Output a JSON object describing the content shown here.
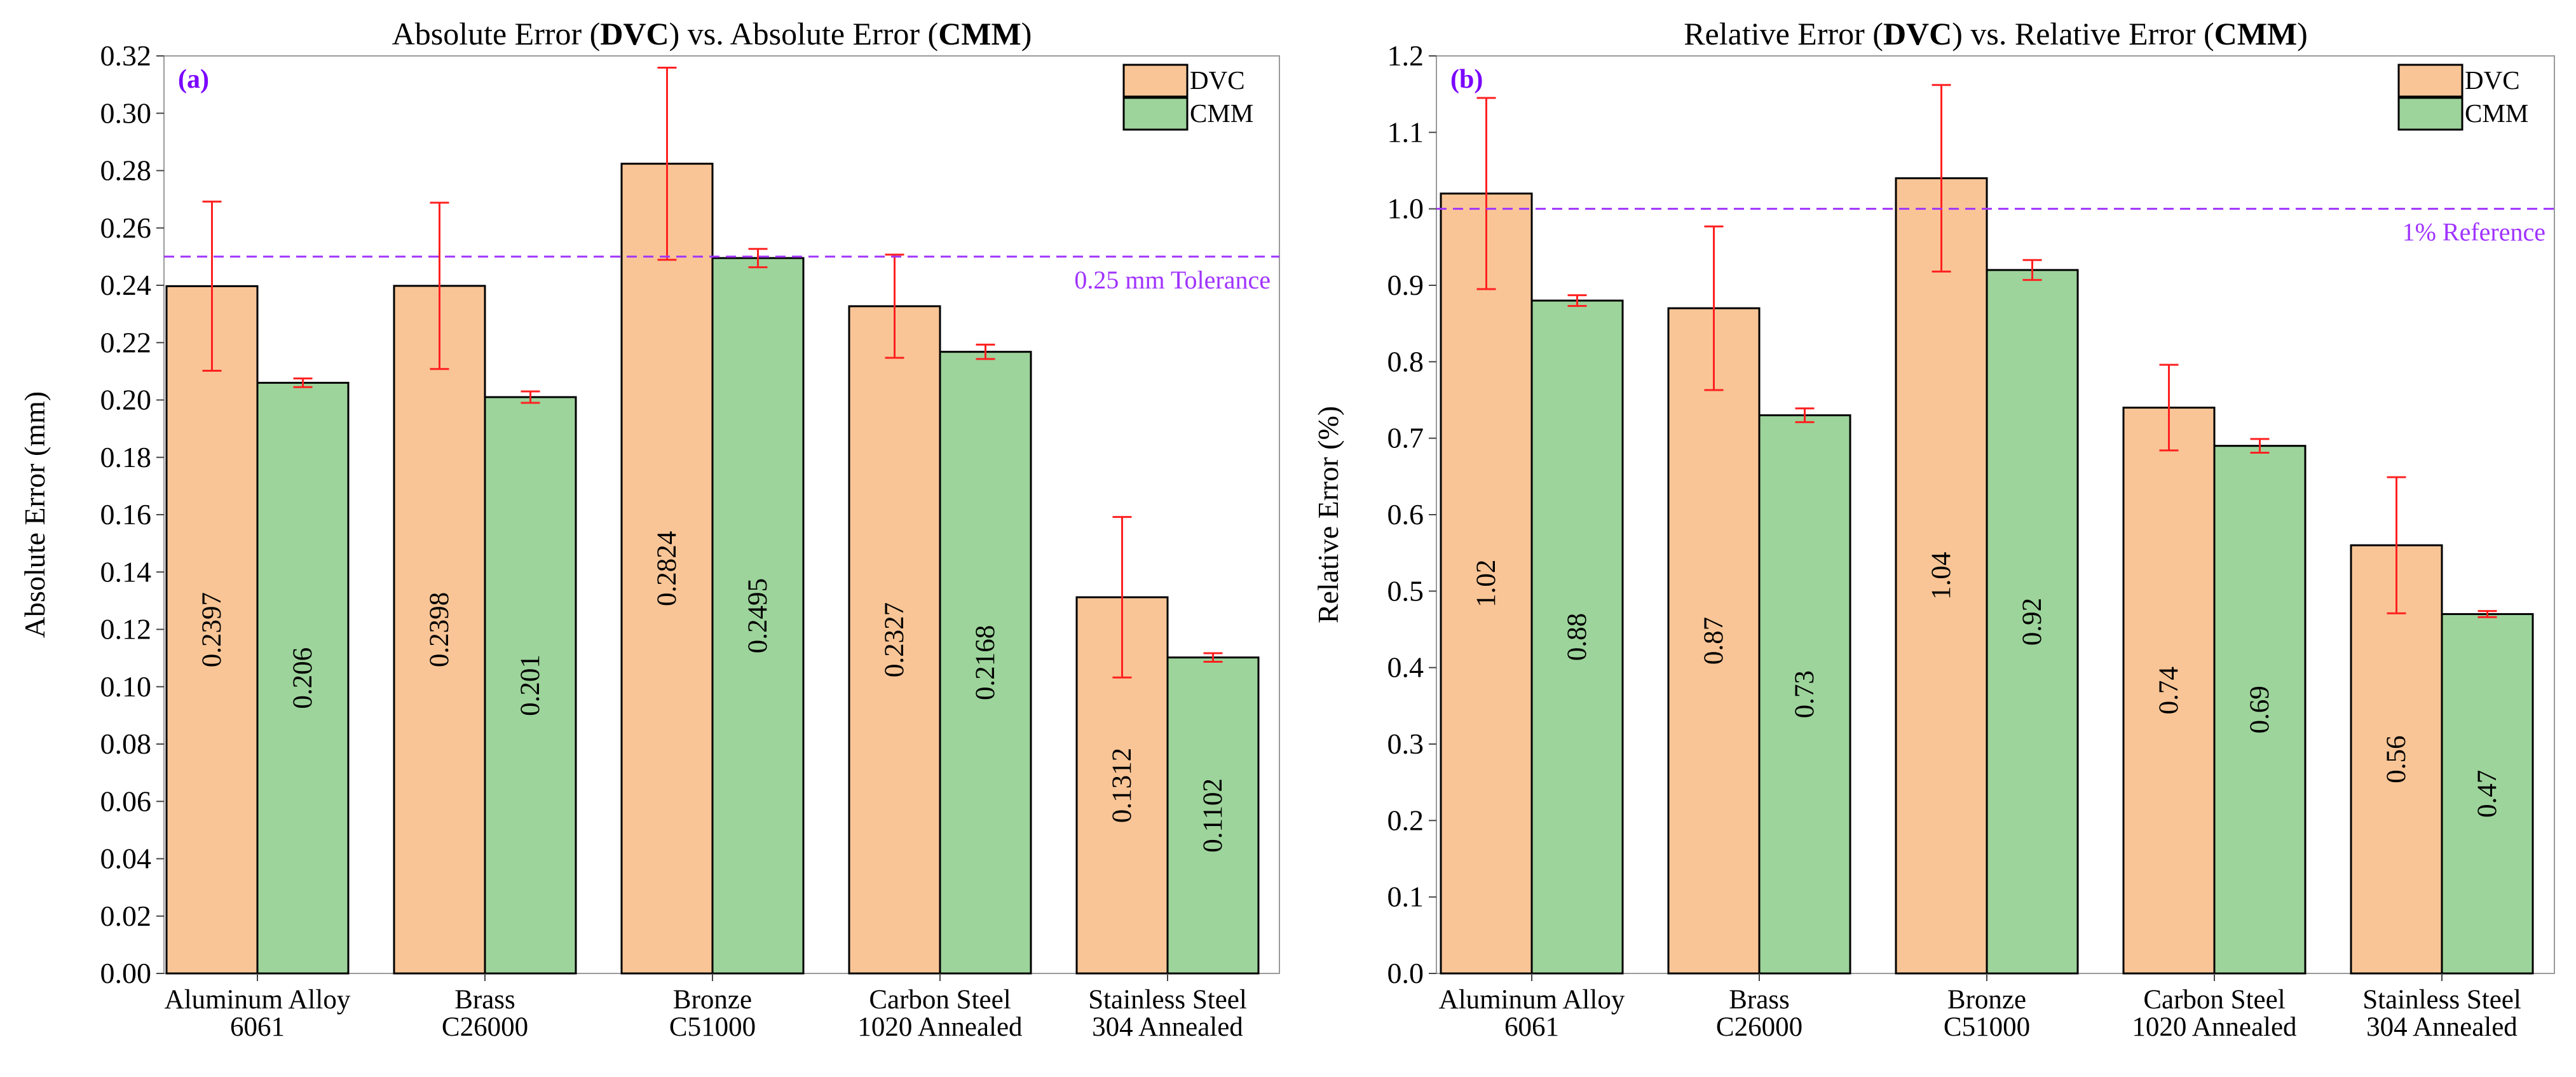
{
  "chart_data": [
    {
      "type": "bar",
      "panel_tag": "(a)",
      "title": {
        "pre": "Absolute Error (",
        "b1": "DVC",
        "mid": ") vs. Absolute Error (",
        "b2": "CMM",
        "post": ")"
      },
      "xlabel": "",
      "ylabel": "Absolute Error (mm)",
      "ylim": [
        0,
        0.32
      ],
      "yticks": [
        "0.00",
        "0.02",
        "0.04",
        "0.06",
        "0.08",
        "0.10",
        "0.12",
        "0.14",
        "0.16",
        "0.18",
        "0.20",
        "0.22",
        "0.24",
        "0.26",
        "0.28",
        "0.30",
        "0.32"
      ],
      "grid": false,
      "legend": "top-right",
      "categories": [
        [
          "Aluminum Alloy",
          "6061"
        ],
        [
          "Brass",
          "C26000"
        ],
        [
          "Bronze",
          "C51000"
        ],
        [
          "Carbon Steel",
          "1020 Annealed"
        ],
        [
          "Stainless Steel",
          "304 Annealed"
        ]
      ],
      "series": [
        {
          "name": "DVC",
          "values": [
            0.2397,
            0.2398,
            0.2824,
            0.2327,
            0.1312
          ],
          "labels": [
            "0.2397",
            "0.2398",
            "0.2824",
            "0.2327",
            "0.1312"
          ],
          "err": [
            0.0295,
            0.029,
            0.0335,
            0.018,
            0.028
          ]
        },
        {
          "name": "CMM",
          "values": [
            0.206,
            0.201,
            0.2495,
            0.2168,
            0.1102
          ],
          "labels": [
            "0.206",
            "0.201",
            "0.2495",
            "0.2168",
            "0.1102"
          ],
          "err": [
            0.0015,
            0.002,
            0.0032,
            0.0025,
            0.0015
          ]
        }
      ],
      "reference": {
        "value": 0.25,
        "label": "0.25 mm Tolerance"
      }
    },
    {
      "type": "bar",
      "panel_tag": "(b)",
      "title": {
        "pre": "Relative Error (",
        "b1": "DVC",
        "mid": ") vs. Relative Error (",
        "b2": "CMM",
        "post": ")"
      },
      "xlabel": "",
      "ylabel": "Relative Error (%)",
      "ylim": [
        0,
        1.2
      ],
      "yticks": [
        "0.0",
        "0.1",
        "0.2",
        "0.3",
        "0.4",
        "0.5",
        "0.6",
        "0.7",
        "0.8",
        "0.9",
        "1.0",
        "1.1",
        "1.2"
      ],
      "grid": false,
      "legend": "top-right",
      "categories": [
        [
          "Aluminum Alloy",
          "6061"
        ],
        [
          "Brass",
          "C26000"
        ],
        [
          "Bronze",
          "C51000"
        ],
        [
          "Carbon Steel",
          "1020 Annealed"
        ],
        [
          "Stainless Steel",
          "304 Annealed"
        ]
      ],
      "series": [
        {
          "name": "DVC",
          "values": [
            1.02,
            0.87,
            1.04,
            0.74,
            0.56
          ],
          "labels": [
            "1.02",
            "0.87",
            "1.04",
            "0.74",
            "0.56"
          ],
          "err": [
            0.125,
            0.107,
            0.122,
            0.056,
            0.089
          ]
        },
        {
          "name": "CMM",
          "values": [
            0.88,
            0.73,
            0.92,
            0.69,
            0.47
          ],
          "labels": [
            "0.88",
            "0.73",
            "0.92",
            "0.69",
            "0.47"
          ],
          "err": [
            0.007,
            0.009,
            0.013,
            0.009,
            0.004
          ]
        }
      ],
      "reference": {
        "value": 1.0,
        "label": "1% Reference"
      }
    }
  ],
  "colors": {
    "dvc": "#f9c596",
    "cmm": "#9dd49b",
    "error_bar": "#ff2020",
    "reference": "#a033ff",
    "panel_tag": "#7a00ff",
    "axis": "#444444"
  }
}
